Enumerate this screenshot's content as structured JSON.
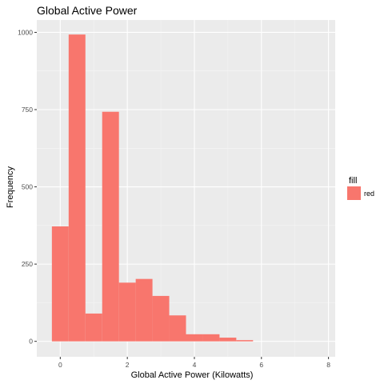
{
  "chart_data": {
    "type": "bar",
    "title": "Global Active Power",
    "xlabel": "Global Active Power (Kilowatts)",
    "ylabel": "Frequency",
    "xlim": [
      -0.7,
      8.2
    ],
    "ylim": [
      -50,
      1040
    ],
    "x_ticks": [
      0,
      2,
      4,
      6,
      8
    ],
    "x_tick_labels": [
      "0",
      "2",
      "4",
      "6",
      "8"
    ],
    "y_ticks": [
      0,
      250,
      500,
      750,
      1000
    ],
    "y_tick_labels": [
      "0",
      "250",
      "500",
      "750",
      "1000"
    ],
    "bin_width": 0.5,
    "bins": [
      {
        "x0": -0.25,
        "x1": 0.25,
        "count": 372
      },
      {
        "x0": 0.25,
        "x1": 0.75,
        "count": 993
      },
      {
        "x0": 0.75,
        "x1": 1.25,
        "count": 90
      },
      {
        "x0": 1.25,
        "x1": 1.75,
        "count": 743
      },
      {
        "x0": 1.75,
        "x1": 2.25,
        "count": 190
      },
      {
        "x0": 2.25,
        "x1": 2.75,
        "count": 202
      },
      {
        "x0": 2.75,
        "x1": 3.25,
        "count": 147
      },
      {
        "x0": 3.25,
        "x1": 3.75,
        "count": 84
      },
      {
        "x0": 3.75,
        "x1": 4.25,
        "count": 23
      },
      {
        "x0": 4.25,
        "x1": 4.75,
        "count": 23
      },
      {
        "x0": 4.75,
        "x1": 5.25,
        "count": 12
      },
      {
        "x0": 5.25,
        "x1": 5.75,
        "count": 4
      },
      {
        "x0": 5.75,
        "x1": 6.25,
        "count": 0
      },
      {
        "x0": 6.25,
        "x1": 6.75,
        "count": 0
      },
      {
        "x0": 6.75,
        "x1": 7.25,
        "count": 0
      },
      {
        "x0": 7.25,
        "x1": 7.75,
        "count": 0
      }
    ],
    "legend": {
      "title": "fill",
      "entries": [
        {
          "label": "red",
          "color": "#F8766D"
        }
      ],
      "placement": "right"
    },
    "grid": true,
    "colors": {
      "bar": "#F8766D",
      "panel": "#EBEBEB",
      "grid_major": "#FFFFFF"
    }
  }
}
